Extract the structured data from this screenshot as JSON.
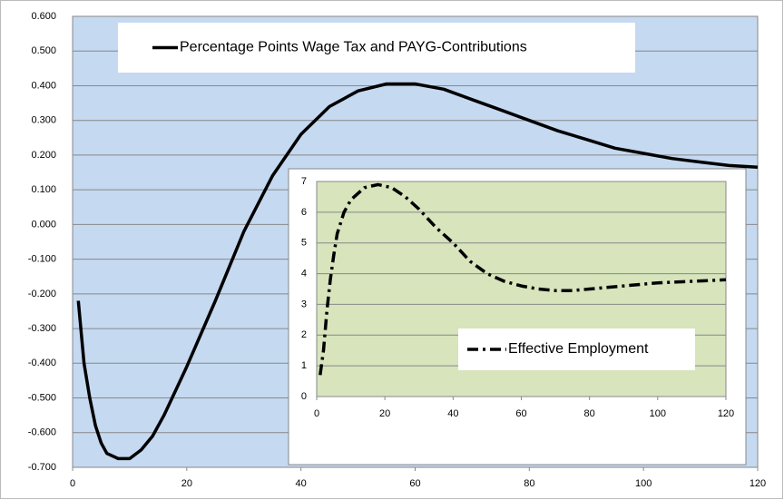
{
  "chart_data": [
    {
      "type": "line",
      "x": [
        1,
        2,
        3,
        4,
        5,
        6,
        8,
        10,
        12,
        14,
        16,
        18,
        20,
        25,
        30,
        35,
        40,
        45,
        50,
        55,
        60,
        65,
        70,
        75,
        80,
        85,
        90,
        95,
        100,
        105,
        110,
        115,
        120
      ],
      "series": [
        {
          "name": "Percentage Points Wage Tax and PAYG-Contributions",
          "color": "#000000",
          "line_style": "solid",
          "values": [
            -0.22,
            -0.4,
            -0.5,
            -0.58,
            -0.63,
            -0.66,
            -0.675,
            -0.675,
            -0.65,
            -0.61,
            -0.55,
            -0.48,
            -0.41,
            -0.22,
            -0.02,
            0.14,
            0.26,
            0.34,
            0.385,
            0.405,
            0.405,
            0.39,
            0.36,
            0.33,
            0.3,
            0.27,
            0.245,
            0.22,
            0.205,
            0.19,
            0.18,
            0.17,
            0.165
          ]
        }
      ],
      "xlim": [
        0,
        120
      ],
      "xticks": [
        0,
        20,
        40,
        60,
        80,
        100,
        120
      ],
      "ylim": [
        -0.7,
        0.6
      ],
      "yticks": [
        {
          "value": 0.6,
          "label": "0.600"
        },
        {
          "value": 0.5,
          "label": "0.500"
        },
        {
          "value": 0.4,
          "label": "0.400"
        },
        {
          "value": 0.3,
          "label": "0.300"
        },
        {
          "value": 0.2,
          "label": "0.200"
        },
        {
          "value": 0.1,
          "label": "0.100"
        },
        {
          "value": 0,
          "label": "0.000"
        },
        {
          "value": -0.1,
          "label": "-0.100"
        },
        {
          "value": -0.2,
          "label": "-0.200"
        },
        {
          "value": -0.3,
          "label": "-0.300"
        },
        {
          "value": -0.4,
          "label": "-0.400"
        },
        {
          "value": -0.5,
          "label": "-0.500"
        },
        {
          "value": -0.6,
          "label": "-0.600"
        },
        {
          "value": -0.7,
          "label": "-0.700"
        }
      ],
      "grid": true,
      "background": "#c5d9f1"
    },
    {
      "type": "line",
      "x": [
        1,
        2,
        3,
        4,
        5,
        6,
        8,
        10,
        14,
        18,
        22,
        26,
        30,
        35,
        40,
        45,
        50,
        55,
        60,
        65,
        70,
        75,
        80,
        85,
        90,
        95,
        100,
        110,
        120
      ],
      "series": [
        {
          "name": "Effective Employment",
          "color": "#000000",
          "line_style": "dash-dot",
          "values": [
            0.7,
            1.5,
            2.8,
            3.8,
            4.6,
            5.3,
            6.0,
            6.4,
            6.8,
            6.9,
            6.8,
            6.5,
            6.1,
            5.5,
            5.0,
            4.4,
            4.0,
            3.75,
            3.6,
            3.5,
            3.45,
            3.45,
            3.5,
            3.55,
            3.6,
            3.65,
            3.7,
            3.75,
            3.8
          ]
        }
      ],
      "xlim": [
        0,
        120
      ],
      "xticks": [
        0,
        20,
        40,
        60,
        80,
        100,
        120
      ],
      "ylim": [
        0,
        7
      ],
      "yticks": [
        0,
        1,
        2,
        3,
        4,
        5,
        6,
        7
      ],
      "grid": true,
      "background": "#d7e4bc"
    }
  ]
}
